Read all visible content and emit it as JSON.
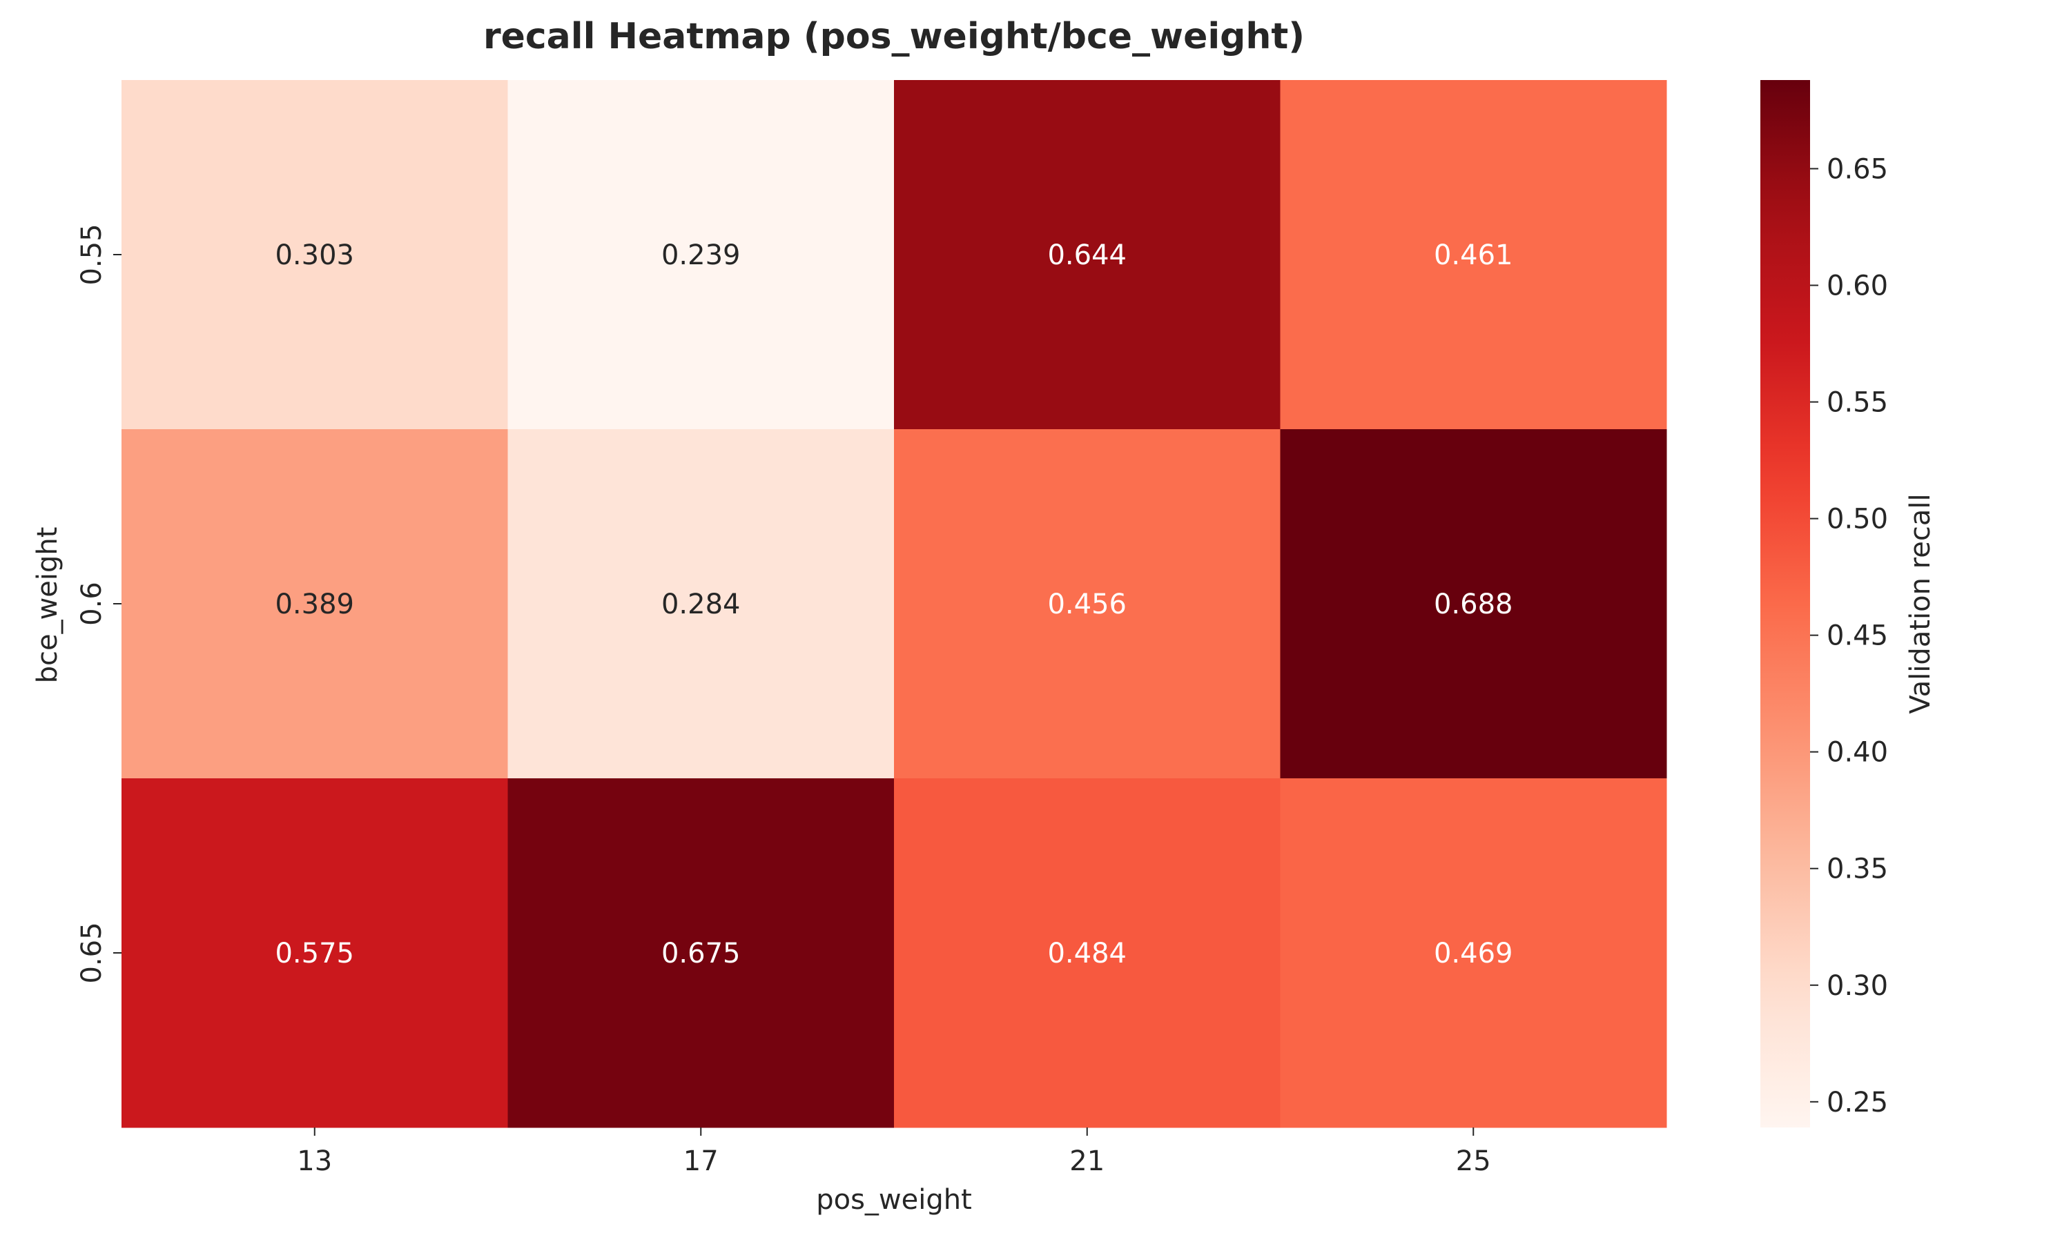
{
  "chart_data": {
    "type": "heatmap",
    "title": "recall Heatmap (pos_weight/bce_weight)",
    "xlabel": "pos_weight",
    "ylabel": "bce_weight",
    "x_categories": [
      "13",
      "17",
      "21",
      "25"
    ],
    "y_categories": [
      "0.55",
      "0.6",
      "0.65"
    ],
    "values": [
      [
        0.303,
        0.239,
        0.644,
        0.461
      ],
      [
        0.389,
        0.284,
        0.456,
        0.688
      ],
      [
        0.575,
        0.675,
        0.484,
        0.469
      ]
    ],
    "cell_labels": [
      [
        "0.303",
        "0.239",
        "0.644",
        "0.461"
      ],
      [
        "0.389",
        "0.284",
        "0.456",
        "0.688"
      ],
      [
        "0.575",
        "0.675",
        "0.484",
        "0.469"
      ]
    ],
    "colormap": "Reds",
    "colorbar": {
      "label": "Validation recall",
      "ticks": [
        0.25,
        0.3,
        0.35,
        0.4,
        0.45,
        0.5,
        0.55,
        0.6,
        0.65
      ],
      "tick_labels": [
        "0.25",
        "0.30",
        "0.35",
        "0.40",
        "0.45",
        "0.50",
        "0.55",
        "0.60",
        "0.65"
      ],
      "range": [
        0.239,
        0.688
      ]
    },
    "grid": false
  }
}
